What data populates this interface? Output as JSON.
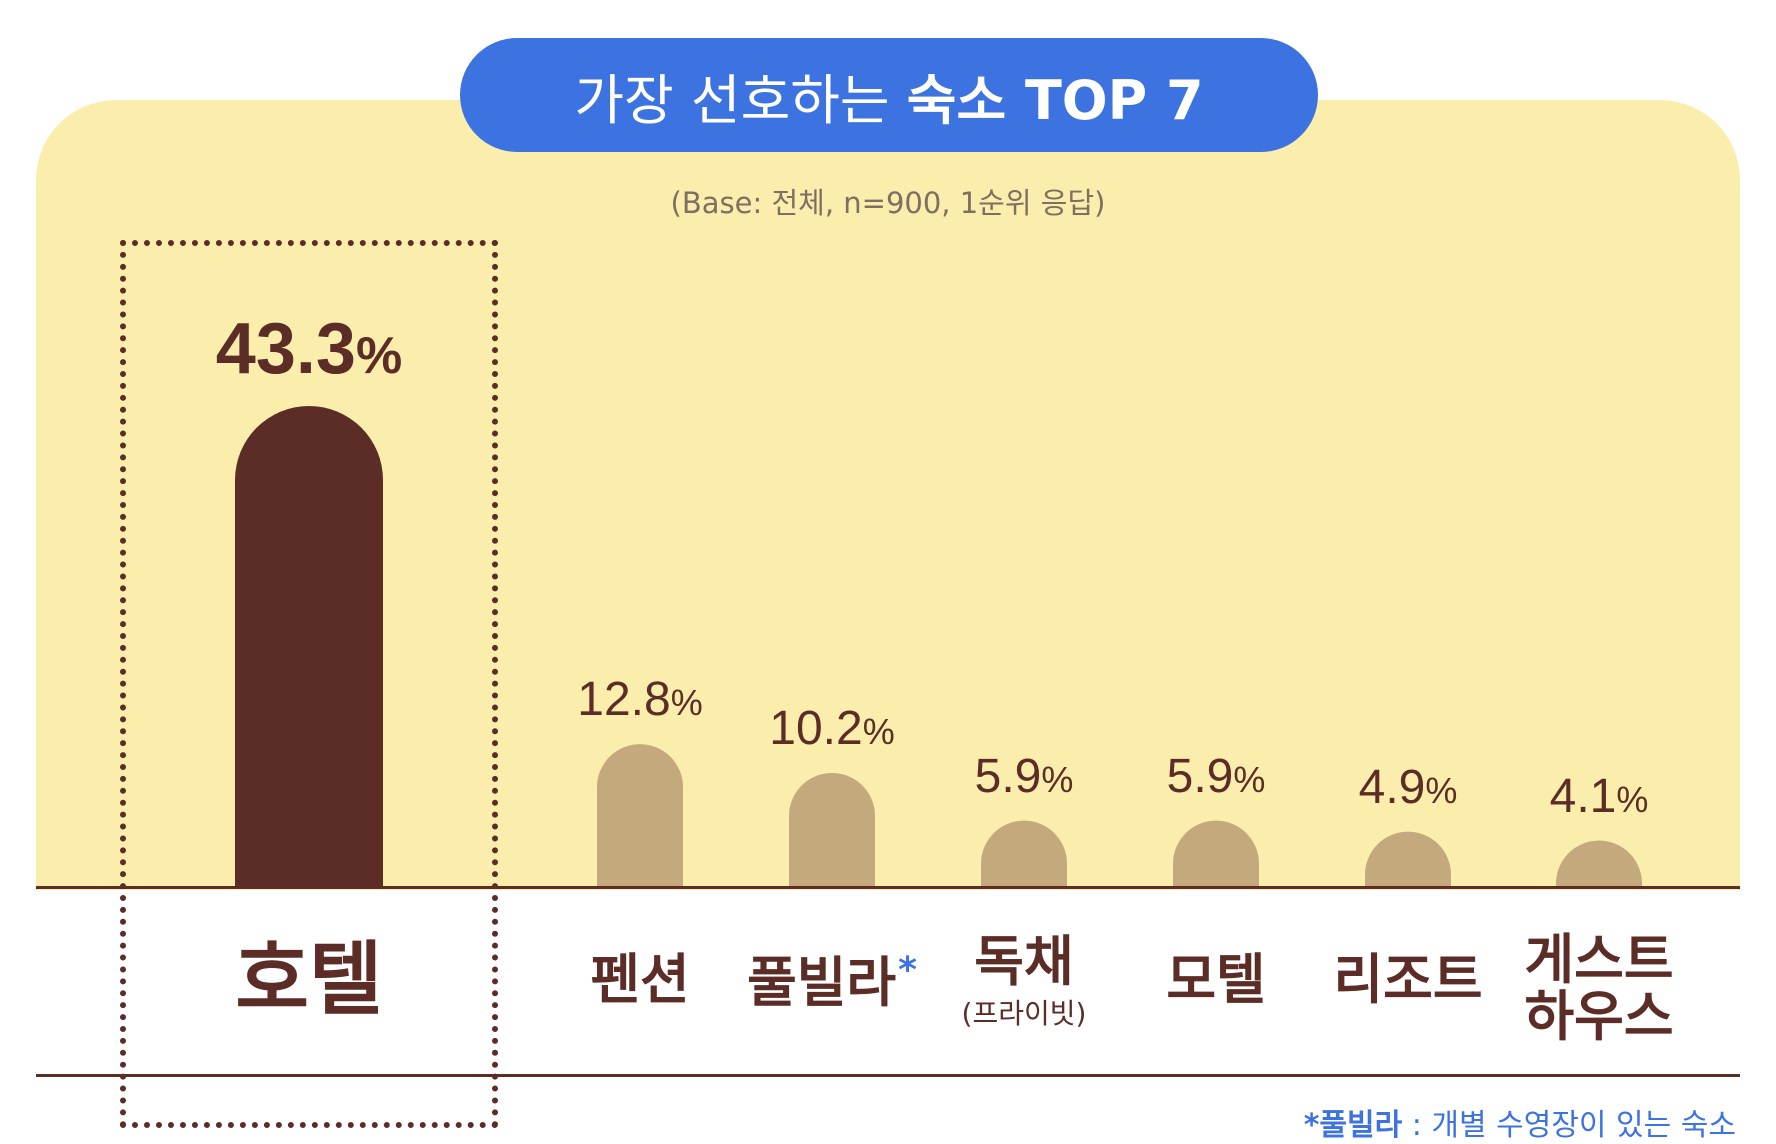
{
  "title": {
    "regular": "가장 선호하는",
    "bold": "숙소 TOP 7"
  },
  "subtitle": "(Base: 전체, n=900, 1순위 응답)",
  "colors": {
    "highlight_bar": "#5b2d26",
    "bar": "#c4a97c",
    "panel": "#fbeeac",
    "accent": "#3d73e0",
    "text": "#5b2d26"
  },
  "chart_data": {
    "type": "bar",
    "unit": "%",
    "categories": [
      "호텔",
      "펜션",
      "풀빌라",
      "독채",
      "모텔",
      "리조트",
      "게스트하우스"
    ],
    "category_display": [
      {
        "lines": [
          "호텔"
        ],
        "sub": "",
        "mark": ""
      },
      {
        "lines": [
          "펜션"
        ],
        "sub": "",
        "mark": ""
      },
      {
        "lines": [
          "풀빌라"
        ],
        "sub": "",
        "mark": "*"
      },
      {
        "lines": [
          "독채"
        ],
        "sub": "(프라이빗)",
        "mark": ""
      },
      {
        "lines": [
          "모텔"
        ],
        "sub": "",
        "mark": ""
      },
      {
        "lines": [
          "리조트"
        ],
        "sub": "",
        "mark": ""
      },
      {
        "lines": [
          "게스트",
          "하우스"
        ],
        "sub": "",
        "mark": ""
      }
    ],
    "values": [
      43.3,
      12.8,
      10.2,
      5.9,
      5.9,
      4.9,
      4.1
    ],
    "value_labels": [
      "43.3",
      "12.8",
      "10.2",
      "5.9",
      "5.9",
      "4.9",
      "4.1"
    ],
    "highlight_index": 0,
    "ylim": [
      0,
      43.3
    ],
    "grid": false,
    "legend": "none"
  },
  "footnote": {
    "term": "*풀빌라",
    "text": ": 개별 수영장이 있는 숙소"
  }
}
